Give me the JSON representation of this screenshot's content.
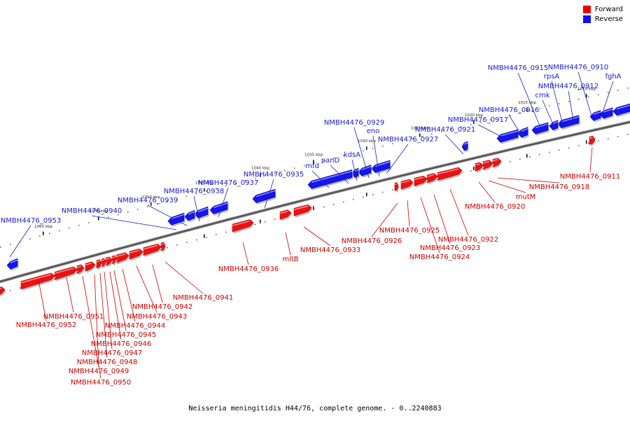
{
  "legend": [
    {
      "label": "Forward",
      "color": "#ee0000"
    },
    {
      "label": "Reverse",
      "color": "#1010ee"
    }
  ],
  "caption": "Neisseria meningitidis H44/76, complete genome. - 0..2240883",
  "scale_labels": [
    "1010 kbp",
    "1015 kbp",
    "1020 kbp",
    "1025 kbp",
    "1030 kbp",
    "1035 kbp",
    "1040 kbp",
    "1045 kbp",
    "1050 kbp",
    "1055 kbp",
    "1060 kbp"
  ],
  "reverse_labels": [
    "NMBH4476_0910",
    "fghA",
    "NMBH4476_0912",
    "NMBH4476_0915",
    "rpsA",
    "cmk",
    "NMBH4476_0916",
    "NMBH4476_0917",
    "NMBH4476_0921",
    "NMBH4476_0927",
    "eno",
    "NMBH4476_0929",
    "kdsA",
    "panD",
    "mfd",
    "NMBH4476_0935",
    "NMBH4476_0937",
    "NMBH4476_0938",
    "NMBH4476_0939",
    "NMBH4476_0940",
    "NMBH4476_0953"
  ],
  "forward_labels": [
    "NMBH4476_0911",
    "NMBH4476_0918",
    "mutM",
    "NMBH4476_0920",
    "NMBH4476_0922",
    "NMBH4476_0923",
    "NMBH4476_0924",
    "NMBH4476_0925",
    "NMBH4476_0926",
    "NMBH4476_0933",
    "mltB",
    "NMBH4476_0936",
    "NMBH4476_0941",
    "NMBH4476_0942",
    "NMBH4476_0943",
    "NMBH4476_0944",
    "NMBH4476_0945",
    "NMBH4476_0946",
    "NMBH4476_0947",
    "NMBH4476_0948",
    "NMBH4476_0949",
    "NMBH4476_0950",
    "NMBH4476_0951",
    "NMBH4476_0952"
  ]
}
